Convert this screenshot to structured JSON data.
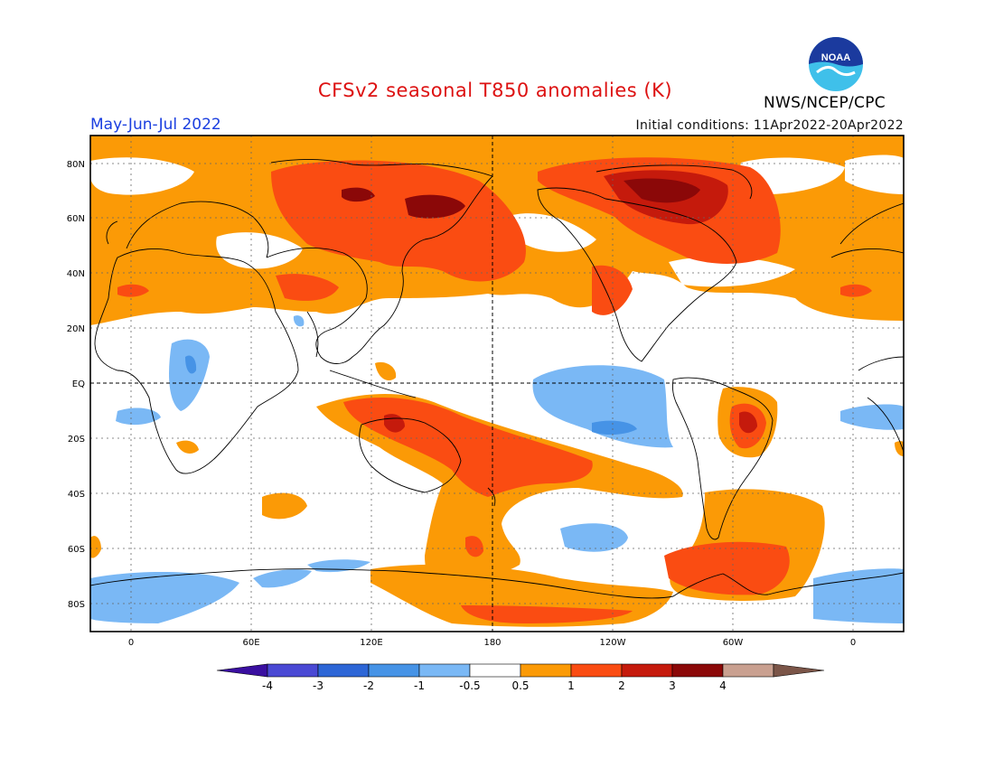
{
  "header": {
    "title": "CFSv2 seasonal T850 anomalies (K)",
    "period": "May-Jun-Jul 2022",
    "initial_conditions": "Initial conditions: 11Apr2022-20Apr2022",
    "agency": "NWS/NCEP/CPC",
    "logo_text": "NOAA",
    "colors": {
      "title": "#dd1111",
      "period": "#1a3ee0"
    }
  },
  "map": {
    "lat_labels": [
      "80N",
      "60N",
      "40N",
      "20N",
      "EQ",
      "20S",
      "40S",
      "60S",
      "80S"
    ],
    "lon_labels": [
      "0",
      "60E",
      "120E",
      "180",
      "120W",
      "60W",
      "0"
    ]
  },
  "colorbar": {
    "tick_labels": [
      "-4",
      "-3",
      "-2",
      "-1",
      "-0.5",
      "0.5",
      "1",
      "2",
      "3",
      "4"
    ],
    "colors": [
      "#3a0fa0",
      "#4a49d4",
      "#2d66d6",
      "#4693e6",
      "#7ab8f5",
      "#ffffff",
      "#fb9a06",
      "#fa4c12",
      "#c51a0c",
      "#8b0808",
      "#c9a090",
      "#7b5548"
    ]
  }
}
